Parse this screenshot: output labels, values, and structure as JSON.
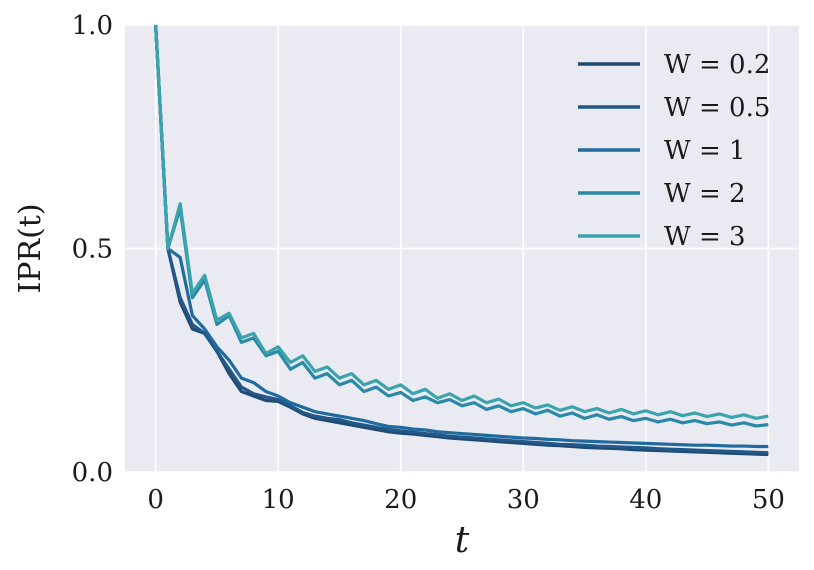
{
  "chart_data": {
    "type": "line",
    "title": "",
    "xlabel": "t",
    "ylabel": "IPR(t)",
    "xlim": [
      -2.5,
      52.5
    ],
    "ylim": [
      0,
      1
    ],
    "xticks": [
      0,
      10,
      20,
      30,
      40,
      50
    ],
    "xtick_labels": [
      "0",
      "10",
      "20",
      "30",
      "40",
      "50"
    ],
    "yticks": [
      0,
      0.5,
      1
    ],
    "ytick_labels": [
      "0.0",
      "0.5",
      "1.0"
    ],
    "grid": true,
    "legend_position": "top-right",
    "x": [
      0,
      1,
      2,
      3,
      4,
      5,
      6,
      7,
      8,
      9,
      10,
      11,
      12,
      13,
      14,
      15,
      16,
      17,
      18,
      19,
      20,
      21,
      22,
      23,
      24,
      25,
      26,
      27,
      28,
      29,
      30,
      31,
      32,
      33,
      34,
      35,
      36,
      37,
      38,
      39,
      40,
      41,
      42,
      43,
      44,
      45,
      46,
      47,
      48,
      49,
      50
    ],
    "series": [
      {
        "name": "W = 0.2",
        "color": "#1f4a73",
        "values": [
          1.0,
          0.5,
          0.38,
          0.32,
          0.31,
          0.27,
          0.22,
          0.18,
          0.17,
          0.16,
          0.158,
          0.145,
          0.13,
          0.12,
          0.115,
          0.11,
          0.105,
          0.1,
          0.095,
          0.09,
          0.087,
          0.085,
          0.082,
          0.079,
          0.076,
          0.074,
          0.072,
          0.07,
          0.068,
          0.066,
          0.064,
          0.062,
          0.06,
          0.059,
          0.057,
          0.055,
          0.054,
          0.053,
          0.052,
          0.05,
          0.049,
          0.048,
          0.047,
          0.046,
          0.045,
          0.044,
          0.043,
          0.042,
          0.041,
          0.04,
          0.039
        ]
      },
      {
        "name": "W = 0.5",
        "color": "#22578a",
        "values": [
          1.0,
          0.5,
          0.39,
          0.33,
          0.31,
          0.27,
          0.23,
          0.19,
          0.175,
          0.168,
          0.162,
          0.148,
          0.133,
          0.125,
          0.12,
          0.117,
          0.11,
          0.105,
          0.1,
          0.095,
          0.092,
          0.089,
          0.086,
          0.083,
          0.08,
          0.078,
          0.076,
          0.074,
          0.072,
          0.07,
          0.068,
          0.066,
          0.064,
          0.062,
          0.061,
          0.06,
          0.058,
          0.057,
          0.056,
          0.055,
          0.054,
          0.052,
          0.051,
          0.05,
          0.049,
          0.048,
          0.047,
          0.046,
          0.045,
          0.044,
          0.043
        ]
      },
      {
        "name": "W = 1",
        "color": "#1f6b9e",
        "values": [
          1.0,
          0.5,
          0.48,
          0.35,
          0.32,
          0.28,
          0.25,
          0.21,
          0.2,
          0.18,
          0.17,
          0.155,
          0.145,
          0.135,
          0.13,
          0.125,
          0.12,
          0.115,
          0.108,
          0.102,
          0.1,
          0.096,
          0.094,
          0.09,
          0.088,
          0.086,
          0.084,
          0.082,
          0.08,
          0.078,
          0.076,
          0.075,
          0.073,
          0.072,
          0.07,
          0.069,
          0.068,
          0.067,
          0.066,
          0.065,
          0.064,
          0.063,
          0.062,
          0.061,
          0.06,
          0.06,
          0.059,
          0.058,
          0.058,
          0.057,
          0.057
        ]
      },
      {
        "name": "W = 2",
        "color": "#2a88a8",
        "values": [
          1.0,
          0.5,
          0.59,
          0.39,
          0.43,
          0.33,
          0.35,
          0.29,
          0.3,
          0.26,
          0.27,
          0.23,
          0.245,
          0.21,
          0.22,
          0.195,
          0.205,
          0.18,
          0.19,
          0.17,
          0.178,
          0.16,
          0.168,
          0.155,
          0.162,
          0.148,
          0.155,
          0.14,
          0.148,
          0.135,
          0.142,
          0.13,
          0.138,
          0.125,
          0.132,
          0.12,
          0.128,
          0.118,
          0.124,
          0.115,
          0.12,
          0.112,
          0.118,
          0.11,
          0.115,
          0.108,
          0.112,
          0.105,
          0.11,
          0.103,
          0.106
        ]
      },
      {
        "name": "W = 3",
        "color": "#3aa3ab",
        "values": [
          1.0,
          0.5,
          0.6,
          0.4,
          0.44,
          0.34,
          0.355,
          0.3,
          0.31,
          0.265,
          0.28,
          0.245,
          0.26,
          0.225,
          0.235,
          0.21,
          0.22,
          0.195,
          0.205,
          0.185,
          0.195,
          0.175,
          0.185,
          0.165,
          0.175,
          0.16,
          0.17,
          0.155,
          0.163,
          0.148,
          0.155,
          0.143,
          0.15,
          0.138,
          0.146,
          0.135,
          0.142,
          0.132,
          0.14,
          0.13,
          0.137,
          0.128,
          0.135,
          0.126,
          0.132,
          0.124,
          0.13,
          0.122,
          0.128,
          0.12,
          0.125
        ]
      }
    ]
  }
}
